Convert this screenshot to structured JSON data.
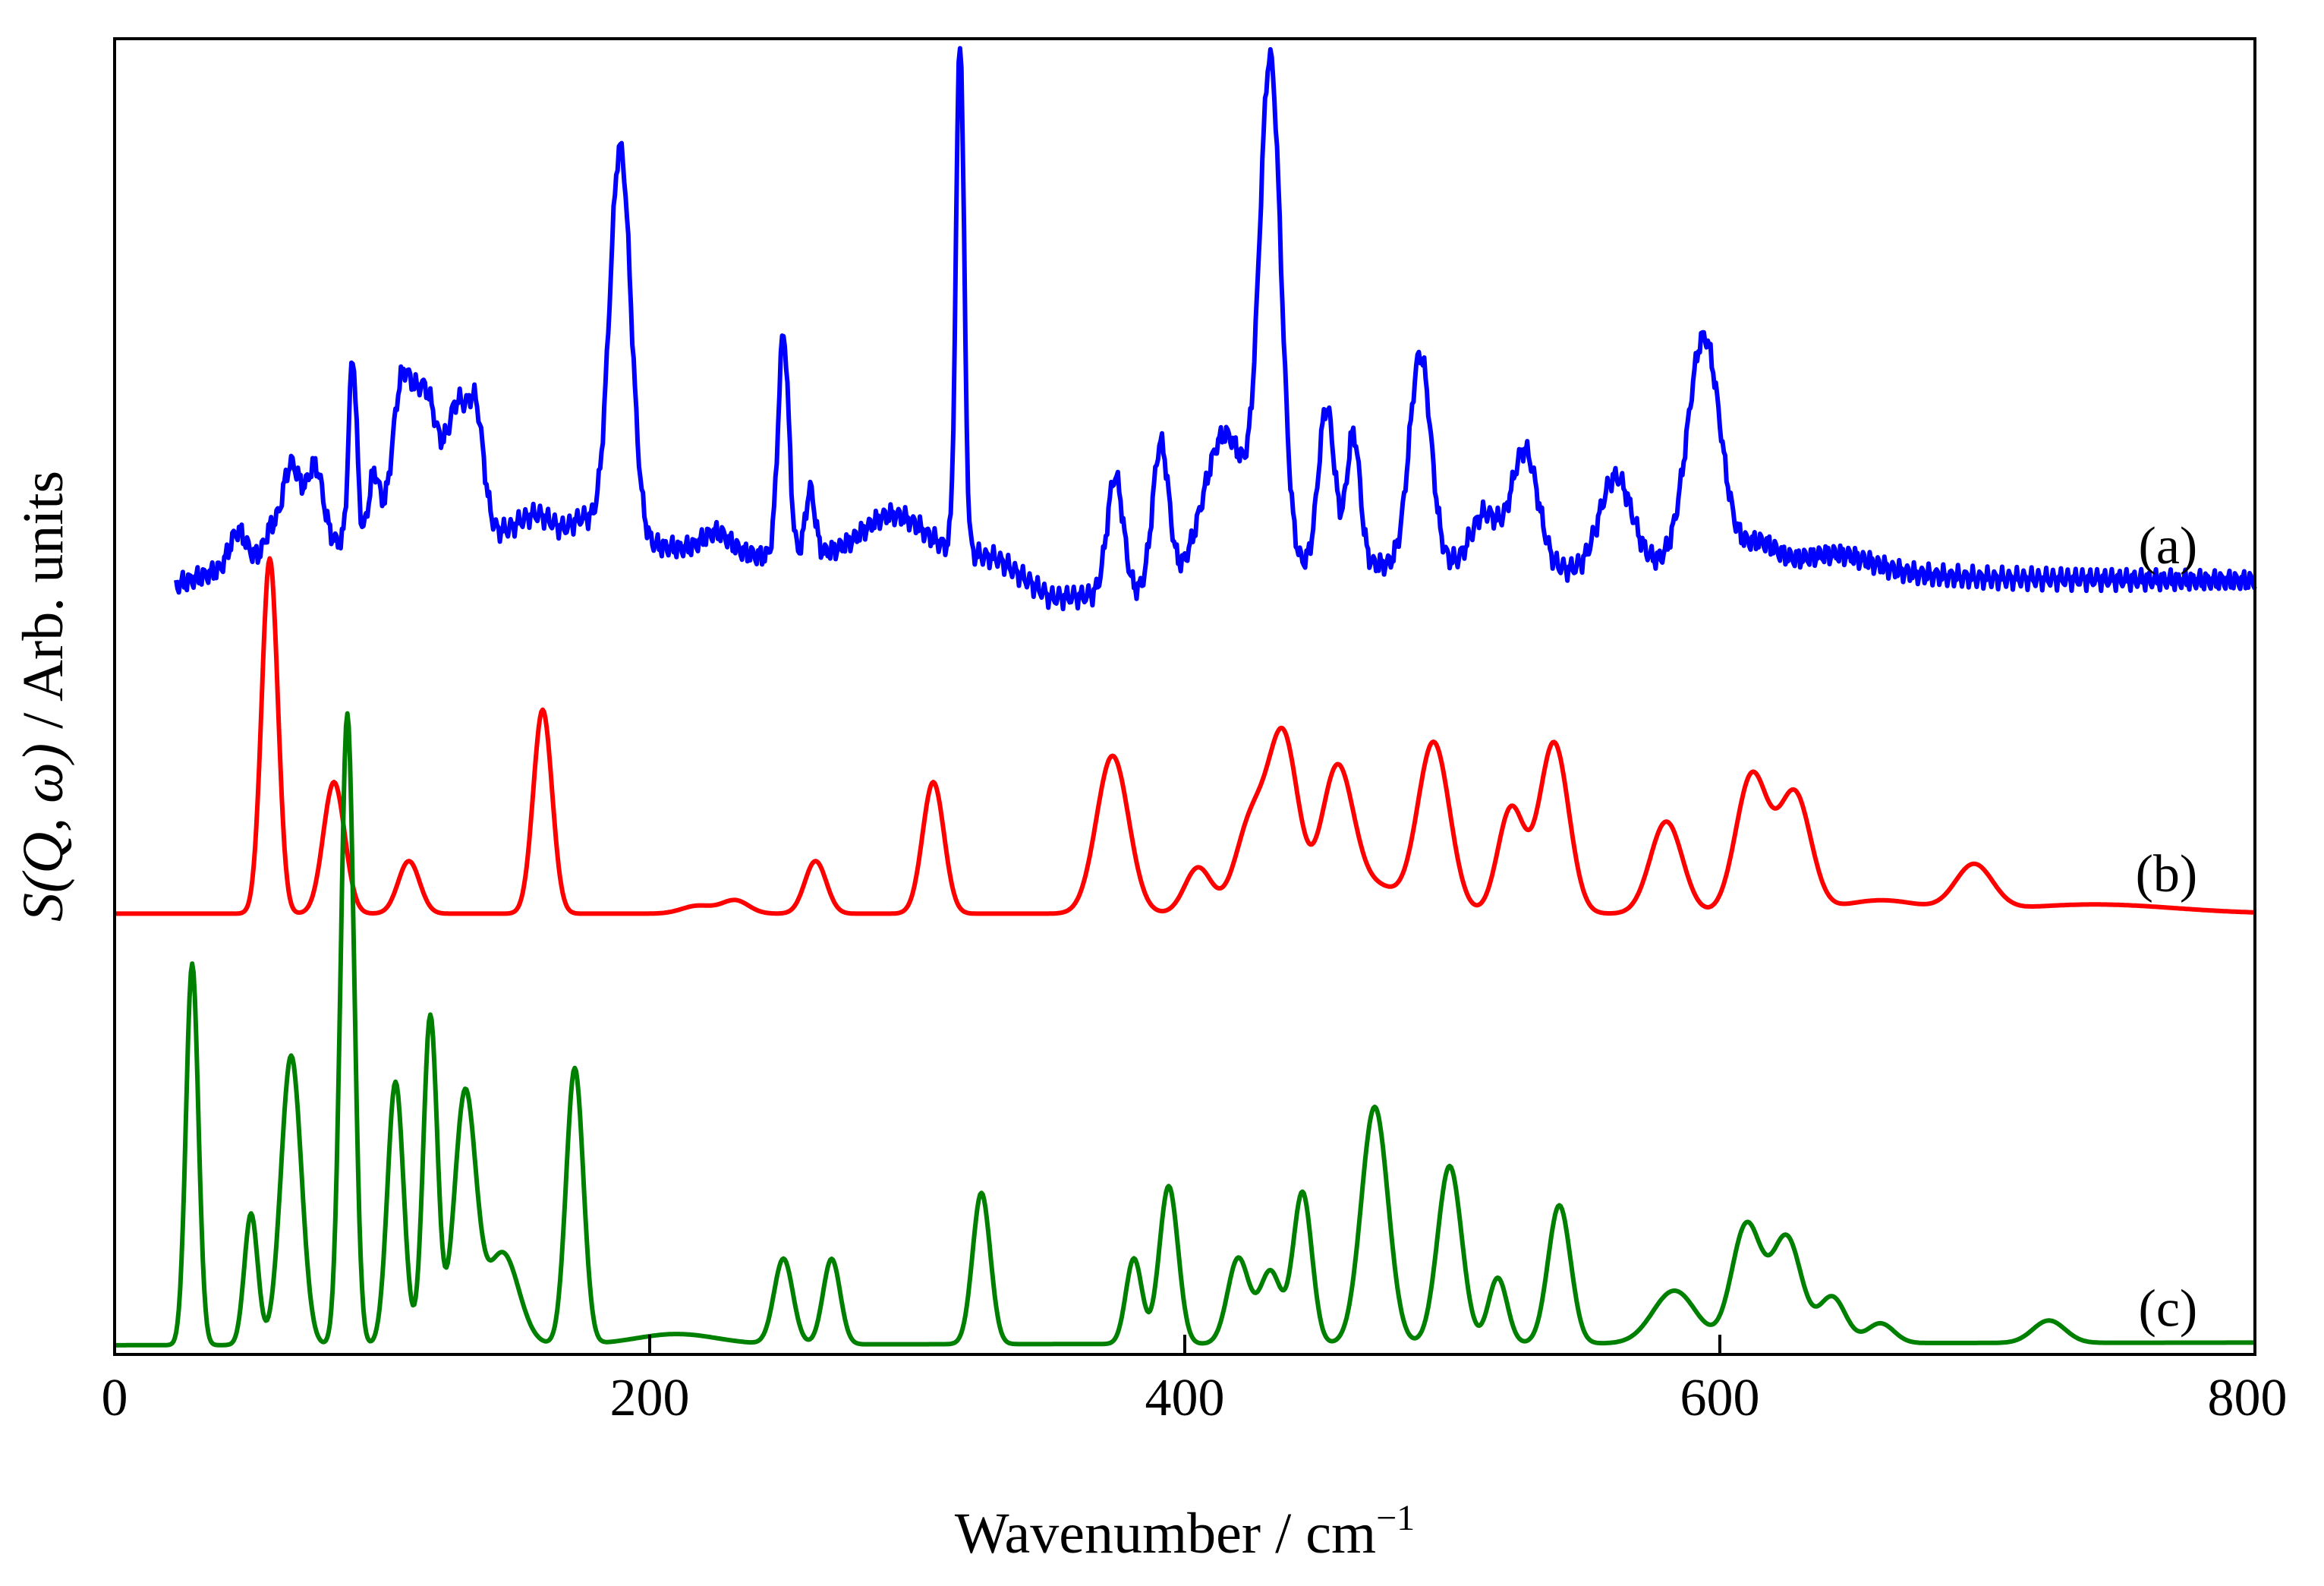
{
  "chart_data": {
    "type": "line",
    "title": "",
    "xlabel": "Wavenumber / cm",
    "xlabel_superscript": "−1",
    "ylabel_italic": "S(Q, ω)",
    "ylabel_rest": " / Arb. units",
    "xlim": [
      0,
      800
    ],
    "ylim": [
      0,
      100
    ],
    "xticks": [
      0,
      200,
      400,
      600,
      800
    ],
    "xtick_labels": [
      "0",
      "200",
      "400",
      "600",
      "800"
    ],
    "grid": false,
    "legend": "none",
    "series": [
      {
        "name": "(a)",
        "color": "#0000ff",
        "baseline": [
          [
            23,
            58.5
          ],
          [
            60,
            61
          ],
          [
            100,
            62
          ],
          [
            150,
            62.5
          ],
          [
            200,
            61.5
          ],
          [
            250,
            60.5
          ],
          [
            300,
            61.5
          ],
          [
            330,
            60.5
          ],
          [
            350,
            57.5
          ],
          [
            380,
            57.8
          ],
          [
            400,
            58.5
          ],
          [
            450,
            60
          ],
          [
            500,
            60
          ],
          [
            550,
            59.5
          ],
          [
            600,
            60.5
          ],
          [
            650,
            59.5
          ],
          [
            700,
            59
          ],
          [
            800,
            58.8
          ]
        ],
        "peaks": [
          [
            46,
            2.5,
            3
          ],
          [
            58,
            1.5,
            2
          ],
          [
            66,
            6.5,
            3.5
          ],
          [
            75,
            6,
            3
          ],
          [
            89,
            14,
            1.5
          ],
          [
            97,
            5,
            2
          ],
          [
            107,
            10,
            3.5
          ],
          [
            116,
            11,
            5
          ],
          [
            128,
            9,
            3.5
          ],
          [
            135,
            9,
            3
          ],
          [
            158,
            1.5,
            6
          ],
          [
            175,
            1.5,
            4
          ],
          [
            189,
            30,
            4
          ],
          [
            225,
            1.5,
            5
          ],
          [
            250,
            17,
            2
          ],
          [
            260,
            5,
            1.8
          ],
          [
            290,
            2.5,
            10
          ],
          [
            316,
            39,
            1.5
          ],
          [
            374,
            9,
            3
          ],
          [
            391,
            11,
            3
          ],
          [
            415,
            11,
            8
          ],
          [
            432,
            38,
            4
          ],
          [
            453,
            12,
            3
          ],
          [
            463,
            10,
            2.5
          ],
          [
            488,
            16,
            4
          ],
          [
            512,
            4,
            5
          ],
          [
            527,
            9,
            5
          ],
          [
            561,
            7,
            6
          ],
          [
            594,
            17,
            6
          ],
          [
            615,
            1.5,
            6
          ],
          [
            645,
            1.2,
            12
          ]
        ],
        "label_x": 770,
        "label": "(a)"
      },
      {
        "name": "(b)",
        "color": "#ff0000",
        "baseline": [
          [
            0,
            33.5
          ],
          [
            800,
            33.5
          ]
        ],
        "peaks": [
          [
            58,
            27,
            3
          ],
          [
            82,
            10,
            4
          ],
          [
            110,
            4,
            4
          ],
          [
            160,
            15.5,
            3.5
          ],
          [
            218,
            0.6,
            6
          ],
          [
            232,
            1,
            5
          ],
          [
            262,
            4,
            4
          ],
          [
            306,
            10,
            4
          ],
          [
            373,
            12,
            6
          ],
          [
            405,
            3.5,
            5
          ],
          [
            425,
            7,
            6
          ],
          [
            437,
            13,
            5.5
          ],
          [
            457,
            11,
            6
          ],
          [
            472,
            2,
            8
          ],
          [
            493,
            13,
            6
          ],
          [
            522,
            8,
            5
          ],
          [
            538,
            13,
            5.5
          ],
          [
            580,
            7,
            6
          ],
          [
            612,
            10.5,
            6
          ],
          [
            628,
            9,
            6
          ],
          [
            660,
            1,
            15
          ],
          [
            695,
            3.5,
            7
          ],
          [
            740,
            0.7,
            30
          ]
        ],
        "label_x": 770,
        "label": "(b)"
      },
      {
        "name": "(c)",
        "color": "#008000",
        "baseline": [
          [
            0,
            0.7
          ],
          [
            800,
            0.9
          ]
        ],
        "peaks": [
          [
            29,
            29,
            2.3
          ],
          [
            51,
            10,
            2.5
          ],
          [
            66,
            22,
            3.8
          ],
          [
            87,
            48,
            2.5
          ],
          [
            105,
            20,
            3
          ],
          [
            118,
            25,
            2.6
          ],
          [
            131,
            19,
            4
          ],
          [
            145,
            7,
            6
          ],
          [
            172,
            21,
            3.2
          ],
          [
            210,
            0.8,
            15
          ],
          [
            250,
            6.5,
            3.5
          ],
          [
            268,
            6.5,
            3.2
          ],
          [
            324,
            11.5,
            3.3
          ],
          [
            381,
            6.5,
            3
          ],
          [
            394,
            12,
            3.5
          ],
          [
            420,
            6.5,
            4
          ],
          [
            432,
            5.5,
            4
          ],
          [
            444,
            11.5,
            3.5
          ],
          [
            471,
            18,
            5
          ],
          [
            499,
            13.5,
            4.5
          ],
          [
            517,
            5,
            3.5
          ],
          [
            540,
            10.5,
            4.2
          ],
          [
            583,
            4,
            8
          ],
          [
            610,
            9,
            5.5
          ],
          [
            625,
            8,
            5.5
          ],
          [
            642,
            3.5,
            5
          ],
          [
            660,
            1.5,
            5
          ],
          [
            723,
            1.7,
            6
          ]
        ],
        "label_x": 770,
        "label": "(c)"
      }
    ]
  }
}
